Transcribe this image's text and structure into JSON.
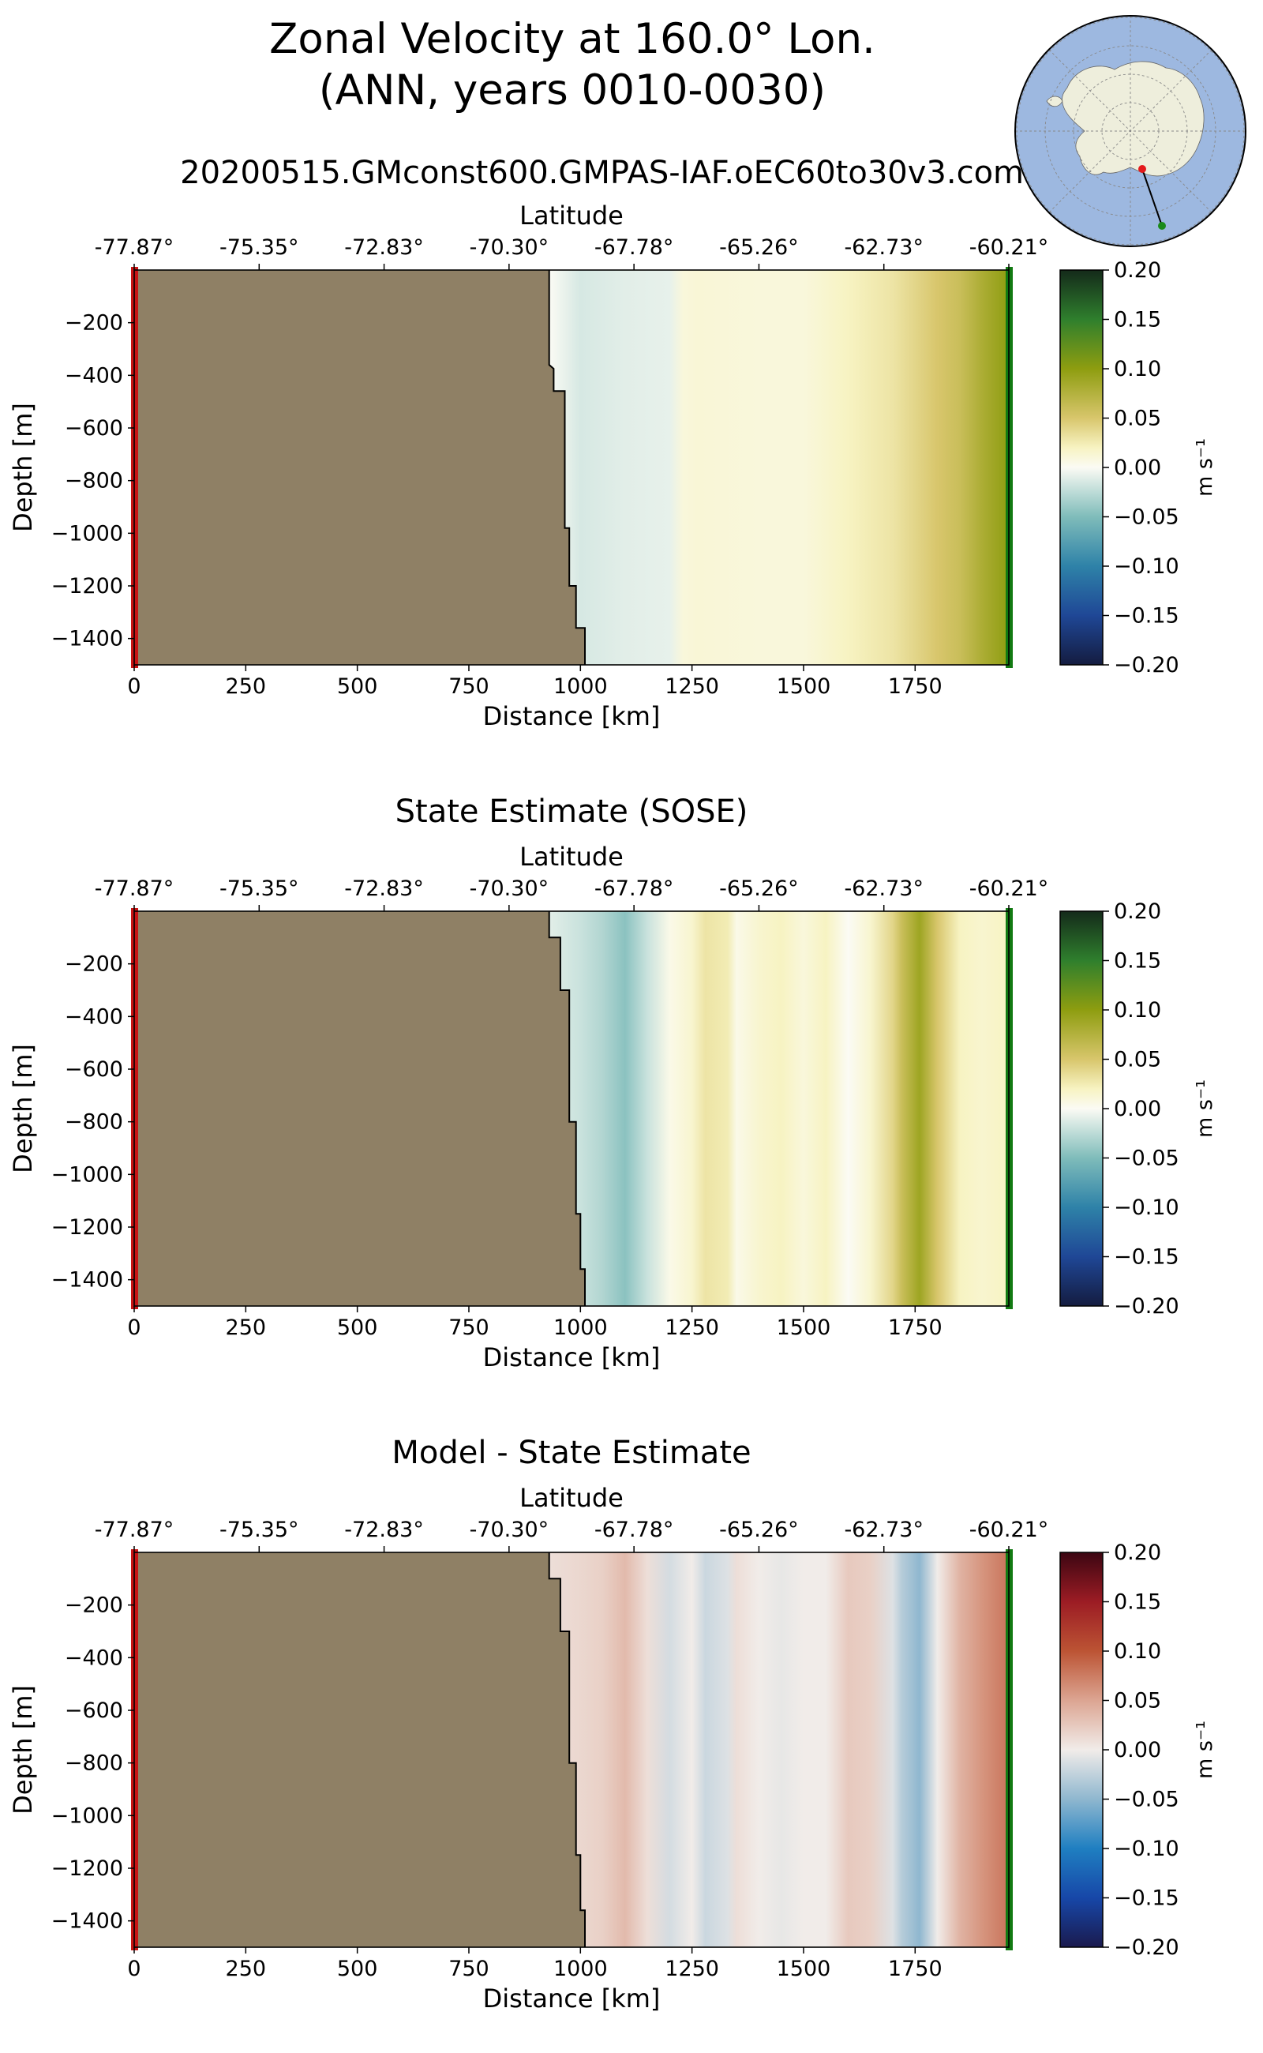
{
  "header": {
    "title_line1": "Zonal Velocity at 160.0° Lon.",
    "title_line2": "(ANN, years 0010-0030)",
    "run_name": "20200515.GMconst600.GMPAS-IAF.oEC60to30v3.com"
  },
  "map_inset": {
    "projection": "south-polar-stereographic",
    "ocean_color": "#9db8e0",
    "land_color": "#eeeedc",
    "transect_start_color": "#e41a1c",
    "transect_end_color": "#1a8a1a"
  },
  "colors": {
    "land_mask": "#8f8065",
    "start_marker": "#c81414",
    "end_marker": "#127a12"
  },
  "chart_data": [
    {
      "type": "heatmap",
      "title": "",
      "xlabel": "Distance [km]",
      "ylabel": "Depth [m]",
      "top_xlabel": "Latitude",
      "xlim": [
        0,
        1960
      ],
      "ylim": [
        -1500,
        0
      ],
      "x_ticks": [
        0,
        250,
        500,
        750,
        1000,
        1250,
        1500,
        1750
      ],
      "x_tick_labels": [
        "0",
        "250",
        "500",
        "750",
        "1000",
        "1250",
        "1500",
        "1750"
      ],
      "top_ticks": [
        0,
        280,
        560,
        840,
        1120,
        1400,
        1680,
        1960
      ],
      "top_tick_labels": [
        "-77.87°",
        "-75.35°",
        "-72.83°",
        "-70.30°",
        "-67.78°",
        "-65.26°",
        "-62.73°",
        "-60.21°"
      ],
      "y_ticks": [
        -200,
        -400,
        -600,
        -800,
        -1000,
        -1200,
        -1400
      ],
      "y_tick_labels": [
        "−200",
        "−400",
        "−600",
        "−800",
        "−1000",
        "−1200",
        "−1400"
      ],
      "colorbar": {
        "label": "m s⁻¹",
        "colormap": "ocean-balance",
        "vmin": -0.2,
        "vmax": 0.2,
        "ticks": [
          "0.20",
          "0.15",
          "0.10",
          "0.05",
          "0.00",
          "−0.05",
          "−0.10",
          "−0.15",
          "−0.20"
        ]
      },
      "bathymetry": [
        [
          930,
          0
        ],
        [
          930,
          -360
        ],
        [
          940,
          -375
        ],
        [
          940,
          -460
        ],
        [
          965,
          -460
        ],
        [
          965,
          -980
        ],
        [
          975,
          -980
        ],
        [
          975,
          -1200
        ],
        [
          990,
          -1200
        ],
        [
          990,
          -1360
        ],
        [
          1010,
          -1360
        ],
        [
          1010,
          -1500
        ]
      ],
      "profile_x": [
        930,
        1000,
        1100,
        1200,
        1230,
        1260,
        1400,
        1500,
        1600,
        1700,
        1750,
        1800,
        1850,
        1900,
        1960
      ],
      "profile_values": [
        0.0,
        -0.015,
        -0.01,
        -0.008,
        0.01,
        0.012,
        0.01,
        0.01,
        0.02,
        0.03,
        0.04,
        0.05,
        0.06,
        0.08,
        0.1
      ]
    },
    {
      "type": "heatmap",
      "title": "State Estimate (SOSE)",
      "xlabel": "Distance [km]",
      "ylabel": "Depth [m]",
      "top_xlabel": "Latitude",
      "xlim": [
        0,
        1960
      ],
      "ylim": [
        -1500,
        0
      ],
      "x_ticks": [
        0,
        250,
        500,
        750,
        1000,
        1250,
        1500,
        1750
      ],
      "x_tick_labels": [
        "0",
        "250",
        "500",
        "750",
        "1000",
        "1250",
        "1500",
        "1750"
      ],
      "top_ticks": [
        0,
        280,
        560,
        840,
        1120,
        1400,
        1680,
        1960
      ],
      "top_tick_labels": [
        "-77.87°",
        "-75.35°",
        "-72.83°",
        "-70.30°",
        "-67.78°",
        "-65.26°",
        "-62.73°",
        "-60.21°"
      ],
      "y_ticks": [
        -200,
        -400,
        -600,
        -800,
        -1000,
        -1200,
        -1400
      ],
      "y_tick_labels": [
        "−200",
        "−400",
        "−600",
        "−800",
        "−1000",
        "−1200",
        "−1400"
      ],
      "colorbar": {
        "label": "m s⁻¹",
        "colormap": "ocean-balance",
        "vmin": -0.2,
        "vmax": 0.2,
        "ticks": [
          "0.20",
          "0.15",
          "0.10",
          "0.05",
          "0.00",
          "−0.05",
          "−0.10",
          "−0.15",
          "−0.20"
        ]
      },
      "bathymetry": [
        [
          930,
          0
        ],
        [
          930,
          -100
        ],
        [
          955,
          -100
        ],
        [
          955,
          -300
        ],
        [
          975,
          -300
        ],
        [
          975,
          -800
        ],
        [
          990,
          -800
        ],
        [
          990,
          -1150
        ],
        [
          1000,
          -1150
        ],
        [
          1000,
          -1360
        ],
        [
          1010,
          -1360
        ],
        [
          1010,
          -1500
        ]
      ],
      "profile_x": [
        930,
        1000,
        1050,
        1100,
        1150,
        1200,
        1250,
        1280,
        1330,
        1350,
        1400,
        1450,
        1500,
        1550,
        1600,
        1650,
        1700,
        1720,
        1760,
        1800,
        1850,
        1900,
        1960
      ],
      "profile_values": [
        -0.01,
        -0.02,
        -0.03,
        -0.045,
        -0.02,
        0.005,
        0.015,
        0.03,
        0.025,
        0.005,
        0.015,
        0.02,
        0.01,
        0.02,
        0.0,
        0.015,
        0.04,
        0.06,
        0.09,
        0.05,
        0.02,
        0.015,
        0.02
      ]
    },
    {
      "type": "heatmap",
      "title": "Model - State Estimate",
      "xlabel": "Distance [km]",
      "ylabel": "Depth [m]",
      "top_xlabel": "Latitude",
      "xlim": [
        0,
        1960
      ],
      "ylim": [
        -1500,
        0
      ],
      "x_ticks": [
        0,
        250,
        500,
        750,
        1000,
        1250,
        1500,
        1750
      ],
      "x_tick_labels": [
        "0",
        "250",
        "500",
        "750",
        "1000",
        "1250",
        "1500",
        "1750"
      ],
      "top_ticks": [
        0,
        280,
        560,
        840,
        1120,
        1400,
        1680,
        1960
      ],
      "top_tick_labels": [
        "-77.87°",
        "-75.35°",
        "-72.83°",
        "-70.30°",
        "-67.78°",
        "-65.26°",
        "-62.73°",
        "-60.21°"
      ],
      "y_ticks": [
        -200,
        -400,
        -600,
        -800,
        -1000,
        -1200,
        -1400
      ],
      "y_tick_labels": [
        "−200",
        "−400",
        "−600",
        "−800",
        "−1000",
        "−1200",
        "−1400"
      ],
      "colorbar": {
        "label": "m s⁻¹",
        "colormap": "red-blue-balance",
        "vmin": -0.2,
        "vmax": 0.2,
        "ticks": [
          "0.20",
          "0.15",
          "0.10",
          "0.05",
          "0.00",
          "−0.05",
          "−0.10",
          "−0.15",
          "−0.20"
        ]
      },
      "bathymetry": [
        [
          930,
          0
        ],
        [
          930,
          -100
        ],
        [
          955,
          -100
        ],
        [
          955,
          -300
        ],
        [
          975,
          -300
        ],
        [
          975,
          -800
        ],
        [
          990,
          -800
        ],
        [
          990,
          -1150
        ],
        [
          1000,
          -1150
        ],
        [
          1000,
          -1360
        ],
        [
          1010,
          -1360
        ],
        [
          1010,
          -1500
        ]
      ],
      "profile_x": [
        930,
        1000,
        1050,
        1100,
        1150,
        1200,
        1250,
        1280,
        1330,
        1350,
        1400,
        1450,
        1500,
        1550,
        1600,
        1650,
        1700,
        1720,
        1760,
        1800,
        1850,
        1900,
        1960
      ],
      "profile_values": [
        0.01,
        0.015,
        0.02,
        0.035,
        0.01,
        -0.015,
        0.0,
        -0.02,
        -0.01,
        0.01,
        0.0,
        -0.005,
        0.0,
        0.0,
        0.025,
        0.02,
        -0.01,
        -0.03,
        -0.05,
        0.0,
        0.04,
        0.06,
        0.08
      ]
    }
  ]
}
